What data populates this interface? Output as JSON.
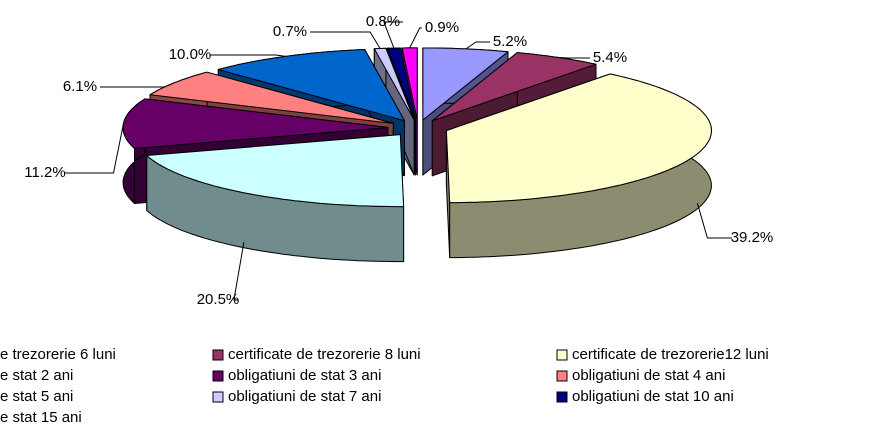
{
  "chart_data": {
    "type": "pie3d",
    "categories": [
      "e trezorerie 6 luni",
      "certificate de trezorerie 8 luni",
      " certificate de trezorerie12 luni",
      "e stat 2 ani",
      "obligatiuni de stat 3 ani",
      "obligatiuni de stat 4 ani",
      "e stat 5 ani",
      "obligatiuni de stat 7 ani",
      "obligatiuni de stat 10 ani",
      "e stat 15 ani"
    ],
    "values": [
      5.2,
      5.4,
      39.2,
      20.5,
      11.2,
      6.1,
      10.0,
      0.7,
      0.8,
      0.9
    ],
    "value_labels": [
      "5.2%",
      "5.4%",
      "39.2%",
      "20.5%",
      "11.2%",
      "6.1%",
      "10.0%",
      "0.7%",
      "0.8%",
      "0.9%"
    ],
    "colors": [
      "#9999ff",
      "#993366",
      "#ffffcc",
      "#ccffff",
      "#660066",
      "#ff8080",
      "#0066cc",
      "#ccccff",
      "#000080",
      "#ff00ff"
    ],
    "legend": "bottom"
  }
}
